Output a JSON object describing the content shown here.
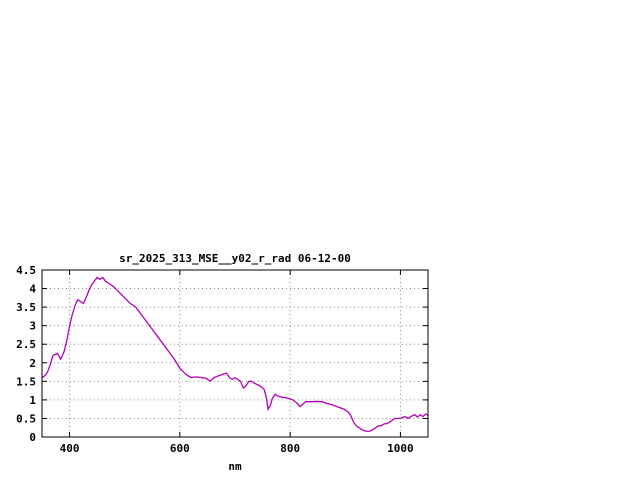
{
  "window": {
    "background": "#ffffff"
  },
  "chart_data": {
    "type": "line",
    "title": "sr_2025_313_MSE__y02_r_rad 06-12-00",
    "xlabel": "nm",
    "ylabel": "",
    "xlim": [
      350,
      1050
    ],
    "ylim": [
      0,
      4.5
    ],
    "x_ticks": [
      400,
      600,
      800,
      1000
    ],
    "y_ticks": [
      0,
      0.5,
      1,
      1.5,
      2,
      2.5,
      3,
      3.5,
      4,
      4.5
    ],
    "grid": true,
    "legend": "none",
    "line_color": "#b400b4",
    "grid_color": "#909090",
    "border_color": "#000000",
    "series": [
      {
        "name": "sr_2025_313_MSE__y02_r_rad",
        "points": [
          [
            350,
            1.6
          ],
          [
            355,
            1.65
          ],
          [
            360,
            1.75
          ],
          [
            365,
            1.95
          ],
          [
            370,
            2.2
          ],
          [
            378,
            2.25
          ],
          [
            384,
            2.1
          ],
          [
            390,
            2.3
          ],
          [
            395,
            2.6
          ],
          [
            400,
            3.0
          ],
          [
            405,
            3.3
          ],
          [
            410,
            3.55
          ],
          [
            415,
            3.7
          ],
          [
            420,
            3.65
          ],
          [
            425,
            3.6
          ],
          [
            430,
            3.75
          ],
          [
            435,
            3.95
          ],
          [
            440,
            4.1
          ],
          [
            445,
            4.2
          ],
          [
            450,
            4.3
          ],
          [
            455,
            4.25
          ],
          [
            460,
            4.3
          ],
          [
            465,
            4.2
          ],
          [
            470,
            4.15
          ],
          [
            480,
            4.05
          ],
          [
            490,
            3.9
          ],
          [
            500,
            3.75
          ],
          [
            510,
            3.6
          ],
          [
            520,
            3.5
          ],
          [
            530,
            3.3
          ],
          [
            540,
            3.1
          ],
          [
            550,
            2.9
          ],
          [
            560,
            2.7
          ],
          [
            570,
            2.5
          ],
          [
            580,
            2.3
          ],
          [
            590,
            2.1
          ],
          [
            600,
            1.85
          ],
          [
            610,
            1.7
          ],
          [
            615,
            1.65
          ],
          [
            620,
            1.6
          ],
          [
            630,
            1.62
          ],
          [
            640,
            1.6
          ],
          [
            648,
            1.58
          ],
          [
            655,
            1.5
          ],
          [
            662,
            1.6
          ],
          [
            670,
            1.65
          ],
          [
            680,
            1.7
          ],
          [
            685,
            1.72
          ],
          [
            690,
            1.6
          ],
          [
            695,
            1.55
          ],
          [
            700,
            1.6
          ],
          [
            705,
            1.55
          ],
          [
            710,
            1.5
          ],
          [
            715,
            1.32
          ],
          [
            720,
            1.38
          ],
          [
            725,
            1.5
          ],
          [
            730,
            1.5
          ],
          [
            735,
            1.45
          ],
          [
            742,
            1.4
          ],
          [
            748,
            1.35
          ],
          [
            753,
            1.28
          ],
          [
            757,
            1.05
          ],
          [
            760,
            0.75
          ],
          [
            764,
            0.85
          ],
          [
            768,
            1.05
          ],
          [
            773,
            1.15
          ],
          [
            778,
            1.1
          ],
          [
            785,
            1.07
          ],
          [
            795,
            1.05
          ],
          [
            805,
            1.0
          ],
          [
            812,
            0.92
          ],
          [
            818,
            0.82
          ],
          [
            823,
            0.88
          ],
          [
            828,
            0.95
          ],
          [
            838,
            0.95
          ],
          [
            848,
            0.96
          ],
          [
            858,
            0.95
          ],
          [
            868,
            0.9
          ],
          [
            878,
            0.86
          ],
          [
            888,
            0.8
          ],
          [
            898,
            0.75
          ],
          [
            905,
            0.68
          ],
          [
            910,
            0.58
          ],
          [
            915,
            0.4
          ],
          [
            920,
            0.3
          ],
          [
            925,
            0.25
          ],
          [
            930,
            0.2
          ],
          [
            935,
            0.17
          ],
          [
            940,
            0.15
          ],
          [
            945,
            0.16
          ],
          [
            950,
            0.2
          ],
          [
            955,
            0.25
          ],
          [
            960,
            0.3
          ],
          [
            965,
            0.3
          ],
          [
            970,
            0.35
          ],
          [
            975,
            0.36
          ],
          [
            980,
            0.4
          ],
          [
            985,
            0.45
          ],
          [
            990,
            0.5
          ],
          [
            1000,
            0.5
          ],
          [
            1008,
            0.55
          ],
          [
            1014,
            0.5
          ],
          [
            1020,
            0.56
          ],
          [
            1026,
            0.6
          ],
          [
            1031,
            0.54
          ],
          [
            1036,
            0.6
          ],
          [
            1041,
            0.55
          ],
          [
            1046,
            0.62
          ],
          [
            1050,
            0.58
          ]
        ]
      }
    ]
  }
}
